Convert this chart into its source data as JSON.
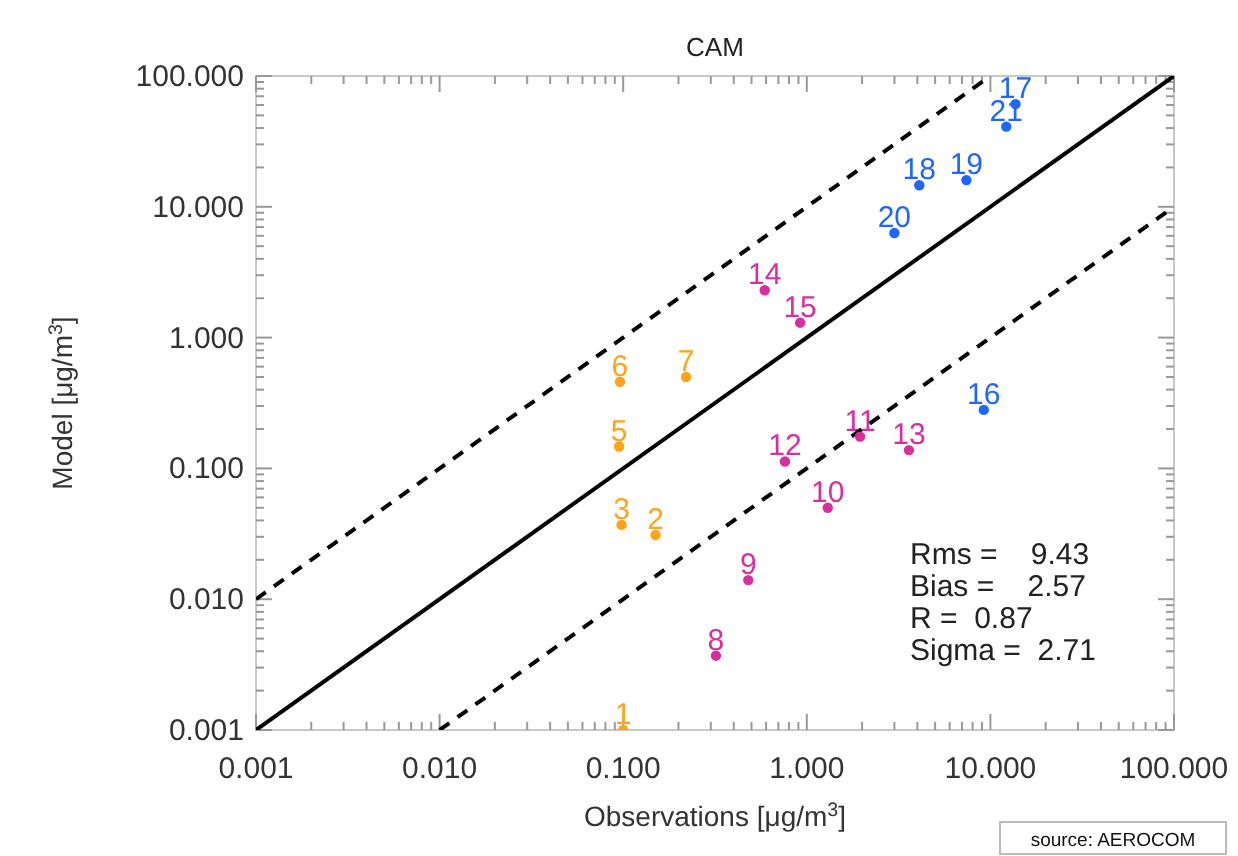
{
  "chart_data": {
    "type": "scatter",
    "title": "CAM",
    "xlabel": "Observations [μg/m$^{3}$]",
    "ylabel": "Model [μg/m$^{3}$]",
    "log": "xy",
    "grid": false,
    "marker": "circle",
    "xlim": [
      0.001,
      100
    ],
    "ylim": [
      0.001,
      100
    ],
    "xticks": [
      {
        "value": 0.001,
        "label": "0.001"
      },
      {
        "value": 0.002,
        "label": null
      },
      {
        "value": 0.003,
        "label": null
      },
      {
        "value": 0.004,
        "label": null
      },
      {
        "value": 0.005,
        "label": null
      },
      {
        "value": 0.006,
        "label": null
      },
      {
        "value": 0.007,
        "label": null
      },
      {
        "value": 0.008,
        "label": null
      },
      {
        "value": 0.009,
        "label": null
      },
      {
        "value": 0.01,
        "label": "0.010"
      },
      {
        "value": 0.02,
        "label": null
      },
      {
        "value": 0.03,
        "label": null
      },
      {
        "value": 0.04,
        "label": null
      },
      {
        "value": 0.05,
        "label": null
      },
      {
        "value": 0.06,
        "label": null
      },
      {
        "value": 0.07,
        "label": null
      },
      {
        "value": 0.08,
        "label": null
      },
      {
        "value": 0.09,
        "label": null
      },
      {
        "value": 0.1,
        "label": "0.100"
      },
      {
        "value": 0.2,
        "label": null
      },
      {
        "value": 0.3,
        "label": null
      },
      {
        "value": 0.4,
        "label": null
      },
      {
        "value": 0.5,
        "label": null
      },
      {
        "value": 0.6,
        "label": null
      },
      {
        "value": 0.7,
        "label": null
      },
      {
        "value": 0.8,
        "label": null
      },
      {
        "value": 0.9,
        "label": null
      },
      {
        "value": 1,
        "label": "1.000"
      },
      {
        "value": 2,
        "label": null
      },
      {
        "value": 3,
        "label": null
      },
      {
        "value": 4,
        "label": null
      },
      {
        "value": 5,
        "label": null
      },
      {
        "value": 6,
        "label": null
      },
      {
        "value": 7,
        "label": null
      },
      {
        "value": 8,
        "label": null
      },
      {
        "value": 9,
        "label": null
      },
      {
        "value": 10,
        "label": "10.000"
      },
      {
        "value": 20,
        "label": null
      },
      {
        "value": 30,
        "label": null
      },
      {
        "value": 40,
        "label": null
      },
      {
        "value": 50,
        "label": null
      },
      {
        "value": 60,
        "label": null
      },
      {
        "value": 70,
        "label": null
      },
      {
        "value": 80,
        "label": null
      },
      {
        "value": 90,
        "label": null
      },
      {
        "value": 100,
        "label": "100.000"
      }
    ],
    "yticks": [
      {
        "value": 0.001,
        "label": "0.001"
      },
      {
        "value": 0.002,
        "label": null
      },
      {
        "value": 0.003,
        "label": null
      },
      {
        "value": 0.004,
        "label": null
      },
      {
        "value": 0.005,
        "label": null
      },
      {
        "value": 0.006,
        "label": null
      },
      {
        "value": 0.007,
        "label": null
      },
      {
        "value": 0.008,
        "label": null
      },
      {
        "value": 0.009,
        "label": null
      },
      {
        "value": 0.01,
        "label": "0.010"
      },
      {
        "value": 0.02,
        "label": null
      },
      {
        "value": 0.03,
        "label": null
      },
      {
        "value": 0.04,
        "label": null
      },
      {
        "value": 0.05,
        "label": null
      },
      {
        "value": 0.06,
        "label": null
      },
      {
        "value": 0.07,
        "label": null
      },
      {
        "value": 0.08,
        "label": null
      },
      {
        "value": 0.09,
        "label": null
      },
      {
        "value": 0.1,
        "label": "0.100"
      },
      {
        "value": 0.2,
        "label": null
      },
      {
        "value": 0.3,
        "label": null
      },
      {
        "value": 0.4,
        "label": null
      },
      {
        "value": 0.5,
        "label": null
      },
      {
        "value": 0.6,
        "label": null
      },
      {
        "value": 0.7,
        "label": null
      },
      {
        "value": 0.8,
        "label": null
      },
      {
        "value": 0.9,
        "label": null
      },
      {
        "value": 1,
        "label": "1.000"
      },
      {
        "value": 2,
        "label": null
      },
      {
        "value": 3,
        "label": null
      },
      {
        "value": 4,
        "label": null
      },
      {
        "value": 5,
        "label": null
      },
      {
        "value": 6,
        "label": null
      },
      {
        "value": 7,
        "label": null
      },
      {
        "value": 8,
        "label": null
      },
      {
        "value": 9,
        "label": null
      },
      {
        "value": 10,
        "label": "10.000"
      },
      {
        "value": 20,
        "label": null
      },
      {
        "value": 30,
        "label": null
      },
      {
        "value": 40,
        "label": null
      },
      {
        "value": 50,
        "label": null
      },
      {
        "value": 60,
        "label": null
      },
      {
        "value": 70,
        "label": null
      },
      {
        "value": 80,
        "label": null
      },
      {
        "value": 90,
        "label": null
      },
      {
        "value": 100,
        "label": "100.000"
      }
    ],
    "series": [
      {
        "type": "line",
        "color": "#000000",
        "line_style": "solid",
        "marker": "none",
        "x": [
          0.001,
          100
        ],
        "values": [
          0.001,
          100
        ]
      },
      {
        "type": "line",
        "color": "#000000",
        "line_style": "dashed",
        "marker": "none",
        "x": [
          0.001,
          10
        ],
        "values": [
          0.01,
          100
        ]
      },
      {
        "type": "line",
        "color": "#000000",
        "line_style": "dashed",
        "marker": "none",
        "x": [
          0.01,
          100
        ],
        "values": [
          0.001,
          10
        ]
      },
      {
        "color": "#ffa31a",
        "x": [
          0.1,
          0.15,
          0.098,
          0.095,
          0.096,
          0.22
        ],
        "values": [
          0.001,
          0.031,
          0.037,
          0.147,
          0.46,
          0.5
        ]
      },
      {
        "color": "#d92f9e",
        "x": [
          0.32,
          0.48,
          1.3,
          1.95,
          0.76,
          3.6,
          0.59,
          0.92
        ],
        "values": [
          0.0037,
          0.014,
          0.05,
          0.175,
          0.113,
          0.138,
          2.3,
          1.3
        ]
      },
      {
        "color": "#1f66ff",
        "x": [
          9.2,
          13.7,
          4.1,
          7.4,
          3.0,
          12.2
        ],
        "values": [
          0.28,
          61,
          14.6,
          16,
          6.3,
          41
        ]
      }
    ],
    "annotations": [
      {
        "text": "1",
        "x": 0.1,
        "y": 0.001
      },
      {
        "text": "2",
        "x": 0.15,
        "y": 0.031
      },
      {
        "text": "3",
        "x": 0.098,
        "y": 0.037
      },
      {
        "text": "5",
        "x": 0.095,
        "y": 0.147
      },
      {
        "text": "6",
        "x": 0.096,
        "y": 0.46
      },
      {
        "text": "7",
        "x": 0.22,
        "y": 0.5
      },
      {
        "text": "8",
        "x": 0.32,
        "y": 0.0037
      },
      {
        "text": "9",
        "x": 0.48,
        "y": 0.014
      },
      {
        "text": "10",
        "x": 1.3,
        "y": 0.05
      },
      {
        "text": "11",
        "x": 1.95,
        "y": 0.175
      },
      {
        "text": "12",
        "x": 0.76,
        "y": 0.113
      },
      {
        "text": "13",
        "x": 3.6,
        "y": 0.138
      },
      {
        "text": "14",
        "x": 0.59,
        "y": 2.3
      },
      {
        "text": "15",
        "x": 0.92,
        "y": 1.3
      },
      {
        "text": "16",
        "x": 9.2,
        "y": 0.28
      },
      {
        "text": "17",
        "x": 13.7,
        "y": 61
      },
      {
        "text": "18",
        "x": 4.1,
        "y": 14.6
      },
      {
        "text": "19",
        "x": 7.4,
        "y": 16
      },
      {
        "text": "20",
        "x": 3.0,
        "y": 6.3
      },
      {
        "text": "21",
        "x": 12.2,
        "y": 41
      },
      "Rms =    9.43",
      "Bias =    2.57",
      "R =  0.87",
      "Sigma =  2.71",
      "source: AEROCOM"
    ]
  }
}
